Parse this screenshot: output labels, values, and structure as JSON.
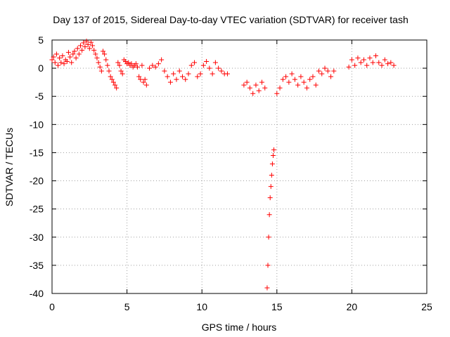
{
  "chart_data": {
    "type": "scatter",
    "title": "Day 137 of 2015, Sidereal Day-to-day VTEC variation (SDTVAR) for receiver tash",
    "xlabel": "GPS time / hours",
    "ylabel": "SDTVAR / TECUs",
    "xlim": [
      0,
      25
    ],
    "ylim": [
      -40,
      5
    ],
    "xticks": [
      0,
      5,
      10,
      15,
      20,
      25
    ],
    "yticks": [
      -40,
      -35,
      -30,
      -25,
      -20,
      -15,
      -10,
      -5,
      0,
      5
    ],
    "grid": true,
    "marker": "+",
    "color": "#ff0000",
    "series": [
      {
        "name": "SDTVAR",
        "x": [
          0.0,
          0.1,
          0.2,
          0.3,
          0.4,
          0.5,
          0.6,
          0.7,
          0.8,
          0.9,
          1.0,
          1.1,
          1.2,
          1.3,
          1.4,
          1.5,
          1.6,
          1.7,
          1.8,
          1.9,
          2.0,
          2.1,
          2.2,
          2.3,
          2.4,
          2.5,
          2.6,
          2.7,
          2.8,
          2.9,
          3.0,
          3.1,
          3.2,
          3.3,
          3.4,
          3.5,
          3.6,
          3.7,
          3.8,
          3.9,
          4.0,
          4.1,
          4.2,
          4.3,
          4.4,
          4.5,
          4.6,
          4.7,
          4.8,
          4.9,
          5.0,
          5.1,
          5.2,
          5.3,
          5.4,
          5.5,
          5.6,
          5.7,
          5.8,
          5.9,
          6.0,
          6.1,
          6.2,
          6.3,
          6.5,
          6.7,
          6.9,
          7.1,
          7.3,
          7.5,
          7.7,
          7.9,
          8.1,
          8.3,
          8.5,
          8.7,
          8.9,
          9.1,
          9.3,
          9.5,
          9.7,
          9.9,
          10.1,
          10.3,
          10.5,
          10.7,
          10.9,
          11.1,
          11.3,
          11.5,
          11.7,
          12.8,
          13.0,
          13.2,
          13.4,
          13.6,
          13.8,
          14.0,
          14.2,
          14.35,
          14.4,
          14.45,
          14.5,
          14.55,
          14.6,
          14.65,
          14.7,
          14.75,
          14.8,
          15.0,
          15.2,
          15.4,
          15.6,
          15.8,
          16.0,
          16.2,
          16.4,
          16.6,
          16.8,
          17.0,
          17.2,
          17.4,
          17.6,
          17.8,
          18.0,
          18.2,
          18.4,
          18.6,
          18.8,
          19.8,
          20.0,
          20.2,
          20.4,
          20.6,
          20.8,
          21.0,
          21.2,
          21.4,
          21.6,
          21.8,
          22.0,
          22.2,
          22.4,
          22.6,
          22.8
        ],
        "y": [
          1.5,
          2.0,
          1.0,
          2.5,
          0.5,
          1.8,
          1.0,
          2.2,
          0.8,
          1.5,
          1.2,
          2.8,
          2.0,
          1.0,
          2.5,
          3.0,
          1.8,
          3.5,
          2.5,
          4.0,
          3.2,
          4.5,
          3.8,
          4.8,
          4.2,
          3.5,
          4.6,
          4.0,
          3.2,
          2.5,
          1.8,
          1.0,
          0.2,
          -0.5,
          3.0,
          2.5,
          1.5,
          0.5,
          -0.5,
          -1.5,
          -2.0,
          -2.5,
          -3.0,
          -3.5,
          1.0,
          0.5,
          -0.5,
          -1.0,
          1.5,
          1.2,
          0.8,
          1.0,
          0.5,
          0.8,
          0.2,
          0.5,
          0.8,
          0.2,
          -1.5,
          -2.0,
          0.5,
          -2.5,
          -2.0,
          -3.0,
          0.0,
          0.5,
          0.2,
          0.8,
          1.5,
          -0.5,
          -1.5,
          -2.5,
          -1.0,
          -2.0,
          -0.5,
          -1.5,
          -2.0,
          -1.0,
          0.5,
          1.0,
          -1.5,
          -1.0,
          0.5,
          1.2,
          0.0,
          -1.0,
          1.0,
          0.0,
          -0.5,
          -1.0,
          -1.0,
          -3.0,
          -2.5,
          -3.5,
          -4.5,
          -3.0,
          -4.0,
          -2.5,
          -3.5,
          -39.0,
          -35.0,
          -30.0,
          -26.0,
          -23.0,
          -21.0,
          -19.0,
          -17.0,
          -15.5,
          -14.5,
          -4.5,
          -3.5,
          -2.0,
          -1.5,
          -2.5,
          -1.0,
          -2.0,
          -3.0,
          -1.5,
          -2.5,
          -3.5,
          -2.0,
          -1.5,
          -3.0,
          -0.5,
          -1.0,
          0.0,
          -0.5,
          -1.5,
          -0.5,
          0.2,
          1.5,
          0.5,
          1.8,
          1.0,
          1.5,
          0.5,
          1.8,
          1.0,
          2.2,
          1.0,
          0.5,
          1.5,
          0.8,
          1.0,
          0.5
        ]
      }
    ]
  }
}
